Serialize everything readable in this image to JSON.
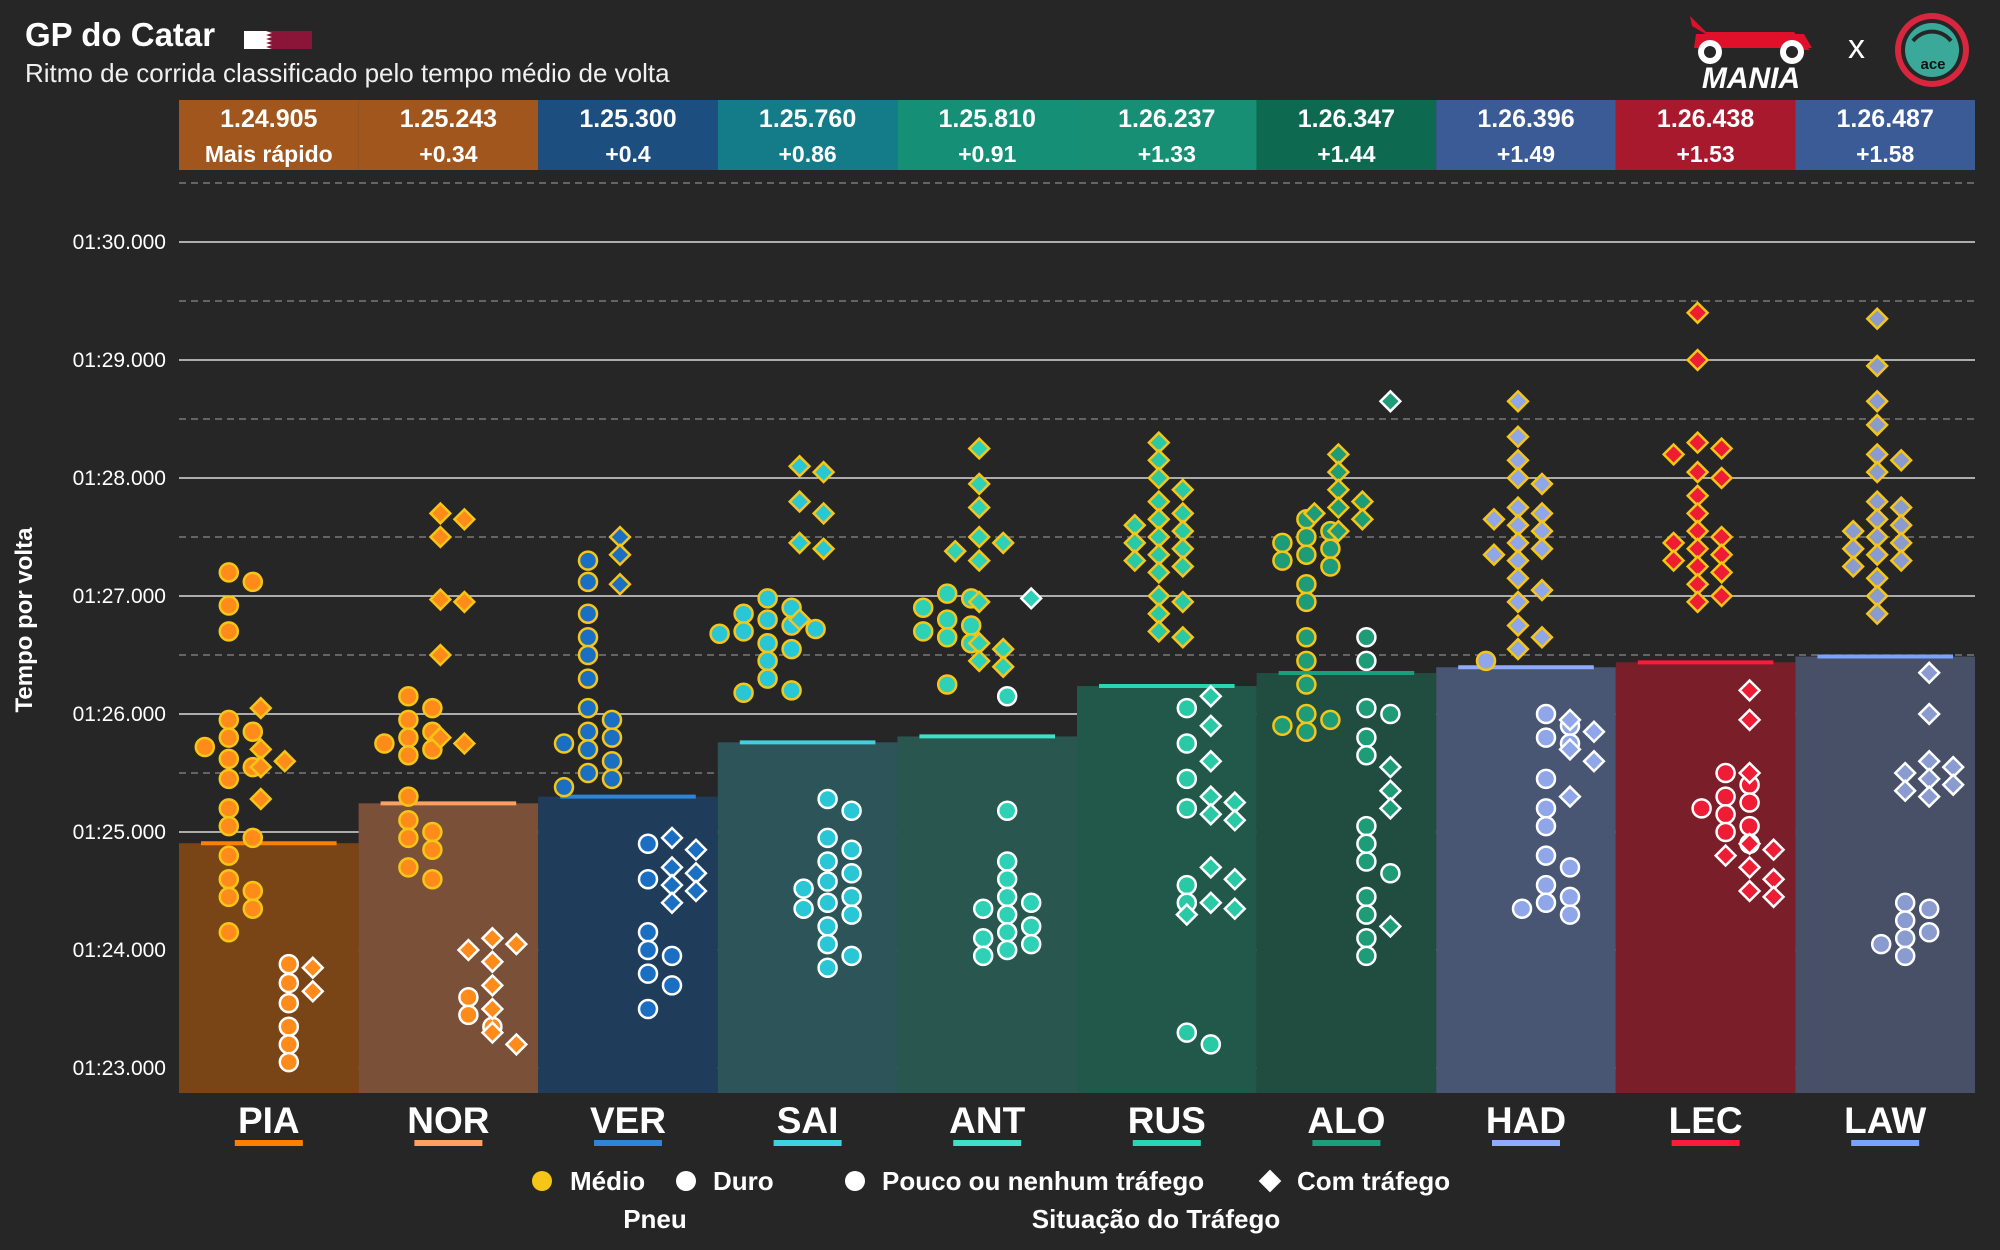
{
  "header": {
    "title": "GP do Catar",
    "subtitle": "Ritmo de corrida classificado pelo tempo médio de volta",
    "logo_text": "MANIA",
    "logo_separator": "x",
    "pace_logo_text": "ace"
  },
  "chart_data": {
    "type": "scatter",
    "title": "GP do Catar",
    "subtitle": "Ritmo de corrida classificado pelo tempo médio de volta",
    "ylabel": "Tempo por volta",
    "ylim": [
      82.8,
      90.5
    ],
    "yticks": [
      {
        "value": 83,
        "label": "01:23.000"
      },
      {
        "value": 84,
        "label": "01:24.000"
      },
      {
        "value": 85,
        "label": "01:25.000"
      },
      {
        "value": 86,
        "label": "01:26.000"
      },
      {
        "value": 87,
        "label": "01:27.000"
      },
      {
        "value": 88,
        "label": "01:28.000"
      },
      {
        "value": 89,
        "label": "01:29.000"
      },
      {
        "value": 90,
        "label": "01:30.000"
      }
    ],
    "legend": {
      "tyre_title": "Pneu",
      "traffic_title": "Situação do Tráfego",
      "medium": "Médio",
      "hard": "Duro",
      "clean": "Pouco ou nenhum tráfego",
      "traffic": "Com tráfego",
      "medium_color": "#f5c518",
      "hard_color": "#ffffff"
    },
    "drivers": [
      {
        "code": "PIA",
        "avg": 84.905,
        "avg_label": "1.24.905",
        "gap_label": "Mais rápido",
        "header_color": "#a0561c",
        "bar_color": "#7a4516",
        "line_color": "#ff8000",
        "fill": "#ff8c1a",
        "medium": {
          "clean": [
            87.2,
            87.12,
            86.92,
            86.7,
            85.95,
            85.85,
            85.8,
            85.72,
            85.62,
            85.55,
            85.45,
            85.2,
            85.05,
            84.95,
            84.8,
            84.6,
            84.5,
            84.45,
            84.35,
            84.15
          ],
          "traffic": [
            86.05,
            85.7,
            85.6,
            85.55,
            85.28
          ]
        },
        "hard": {
          "clean": [
            83.88,
            83.72,
            83.55,
            83.35,
            83.2,
            83.05
          ],
          "traffic": [
            83.85,
            83.65
          ]
        }
      },
      {
        "code": "NOR",
        "avg": 85.243,
        "avg_label": "1.25.243",
        "gap_label": "+0.34",
        "header_color": "#a0561c",
        "bar_color": "#7a5038",
        "line_color": "#ffa060",
        "fill": "#ff8c1a",
        "medium": {
          "clean": [
            86.15,
            86.05,
            85.95,
            85.85,
            85.8,
            85.75,
            85.7,
            85.65,
            85.3,
            85.1,
            85.0,
            84.95,
            84.85,
            84.7,
            84.6
          ],
          "traffic": [
            87.7,
            87.65,
            87.5,
            86.97,
            86.95,
            86.5,
            85.8,
            85.75
          ]
        },
        "hard": {
          "clean": [
            83.6,
            83.45,
            83.35
          ],
          "traffic": [
            84.1,
            84.05,
            84.0,
            83.9,
            83.7,
            83.5,
            83.3,
            83.2
          ]
        }
      },
      {
        "code": "VER",
        "avg": 85.3,
        "avg_label": "1.25.300",
        "gap_label": "+0.4",
        "header_color": "#1d4e80",
        "bar_color": "#1f3d5a",
        "line_color": "#2f84d8",
        "fill": "#1a6fc2",
        "medium": {
          "clean": [
            87.3,
            87.12,
            86.85,
            86.65,
            86.5,
            86.3,
            86.05,
            85.95,
            85.85,
            85.8,
            85.75,
            85.7,
            85.6,
            85.5,
            85.45,
            85.38
          ],
          "traffic": [
            87.5,
            87.35,
            87.1
          ]
        },
        "hard": {
          "clean": [
            84.15,
            84.0,
            83.95,
            83.8,
            83.7,
            83.5,
            84.9,
            84.6
          ],
          "traffic": [
            84.95,
            84.85,
            84.7,
            84.65,
            84.55,
            84.4,
            84.5
          ]
        }
      },
      {
        "code": "SAI",
        "avg": 85.76,
        "avg_label": "1.25.760",
        "gap_label": "+0.86",
        "header_color": "#137c88",
        "bar_color": "#2d5559",
        "line_color": "#3fd0e2",
        "fill": "#29c6d6",
        "medium": {
          "clean": [
            86.98,
            86.9,
            86.85,
            86.8,
            86.75,
            86.72,
            86.7,
            86.68,
            86.6,
            86.55,
            86.45,
            86.3,
            86.2,
            86.18
          ],
          "traffic": [
            88.1,
            88.05,
            87.8,
            87.7,
            87.45,
            87.4,
            86.8
          ]
        },
        "hard": {
          "clean": [
            85.28,
            85.18,
            84.95,
            84.85,
            84.75,
            84.65,
            84.58,
            84.52,
            84.45,
            84.4,
            84.35,
            84.3,
            84.2,
            84.05,
            83.95,
            83.85
          ],
          "traffic": []
        }
      },
      {
        "code": "ANT",
        "avg": 85.81,
        "avg_label": "1.25.810",
        "gap_label": "+0.91",
        "header_color": "#158f76",
        "bar_color": "#29574f",
        "line_color": "#40e0c8",
        "fill": "#2fd1b6",
        "medium": {
          "clean": [
            87.02,
            86.98,
            86.9,
            86.8,
            86.75,
            86.7,
            86.65,
            86.6,
            86.25
          ],
          "traffic": [
            88.25,
            87.95,
            87.75,
            87.5,
            87.45,
            87.38,
            87.3,
            86.95,
            86.6,
            86.55,
            86.45,
            86.4
          ]
        },
        "hard": {
          "clean": [
            86.15,
            85.18,
            84.75,
            84.6,
            84.45,
            84.4,
            84.35,
            84.3,
            84.2,
            84.15,
            84.1,
            84.05,
            84.0,
            83.95
          ],
          "traffic": [
            86.98
          ]
        }
      },
      {
        "code": "RUS",
        "avg": 86.237,
        "avg_label": "1.26.237",
        "gap_label": "+1.33",
        "header_color": "#178f74",
        "bar_color": "#21584a",
        "line_color": "#29d5b2",
        "fill": "#29c9a6",
        "medium": {
          "clean": [],
          "traffic": [
            88.3,
            88.15,
            88.0,
            87.9,
            87.8,
            87.7,
            87.65,
            87.6,
            87.55,
            87.5,
            87.45,
            87.4,
            87.35,
            87.3,
            87.25,
            87.2,
            87.0,
            86.95,
            86.85,
            86.7,
            86.65
          ]
        },
        "hard": {
          "clean": [
            86.05,
            85.75,
            85.45,
            85.2,
            84.55,
            84.4,
            83.3,
            83.2
          ],
          "traffic": [
            86.15,
            85.9,
            85.6,
            85.3,
            85.25,
            85.15,
            85.1,
            84.7,
            84.6,
            84.4,
            84.35,
            84.3
          ]
        }
      },
      {
        "code": "ALO",
        "avg": 86.347,
        "avg_label": "1.26.347",
        "gap_label": "+1.44",
        "header_color": "#0d6a50",
        "bar_color": "#214d41",
        "line_color": "#1a9e7b",
        "fill": "#1e9c78",
        "medium": {
          "clean": [
            87.65,
            87.55,
            87.5,
            87.45,
            87.4,
            87.35,
            87.3,
            87.25,
            87.1,
            86.95,
            86.65,
            86.45,
            86.25,
            86.0,
            85.95,
            85.9,
            85.85
          ],
          "traffic": [
            88.2,
            88.05,
            87.9,
            87.8,
            87.75,
            87.7,
            87.65,
            87.55
          ]
        },
        "hard": {
          "clean": [
            86.65,
            86.45,
            86.05,
            86.0,
            85.8,
            85.65,
            85.05,
            84.75,
            84.45,
            84.3,
            84.1,
            83.95,
            84.65,
            84.9
          ],
          "traffic": [
            88.65,
            85.55,
            85.35,
            85.2,
            84.2
          ]
        }
      },
      {
        "code": "HAD",
        "avg": 86.396,
        "avg_label": "1.26.396",
        "gap_label": "+1.49",
        "header_color": "#3b5b97",
        "bar_color": "#485674",
        "line_color": "#8faaff",
        "fill": "#8fa6e8",
        "medium": {
          "clean": [
            86.45
          ],
          "traffic": [
            88.65,
            88.35,
            88.15,
            88.0,
            87.95,
            87.75,
            87.7,
            87.65,
            87.6,
            87.55,
            87.45,
            87.4,
            87.35,
            87.3,
            87.15,
            87.05,
            86.95,
            86.75,
            86.65,
            86.55
          ]
        },
        "hard": {
          "clean": [
            86.0,
            85.9,
            85.8,
            85.75,
            85.45,
            85.2,
            85.05,
            84.8,
            84.7,
            84.55,
            84.45,
            84.4,
            84.35,
            84.3
          ],
          "traffic": [
            85.95,
            85.85,
            85.7,
            85.6,
            85.3
          ]
        }
      },
      {
        "code": "LEC",
        "avg": 86.438,
        "avg_label": "1.26.438",
        "gap_label": "+1.53",
        "header_color": "#a8192d",
        "bar_color": "#7a1f2a",
        "line_color": "#ff1a3a",
        "fill": "#ef1c36",
        "medium": {
          "clean": [],
          "traffic": [
            89.4,
            89.0,
            88.3,
            88.25,
            88.2,
            88.05,
            88.0,
            87.85,
            87.7,
            87.55,
            87.5,
            87.45,
            87.4,
            87.35,
            87.3,
            87.25,
            87.2,
            87.1,
            87.0,
            86.95
          ]
        },
        "hard": {
          "clean": [
            85.5,
            85.4,
            85.3,
            85.25,
            85.2,
            85.15,
            85.05,
            85.0,
            84.9
          ],
          "traffic": [
            86.2,
            85.95,
            85.5,
            84.9,
            84.85,
            84.8,
            84.7,
            84.6,
            84.5,
            84.45
          ]
        }
      },
      {
        "code": "LAW",
        "avg": 86.487,
        "avg_label": "1.26.487",
        "gap_label": "+1.58",
        "header_color": "#3b5b97",
        "bar_color": "#475066",
        "line_color": "#7aa2ff",
        "fill": "#8a9bcf",
        "medium": {
          "clean": [],
          "traffic": [
            89.35,
            88.95,
            88.65,
            88.45,
            88.2,
            88.15,
            88.05,
            87.8,
            87.75,
            87.65,
            87.6,
            87.55,
            87.5,
            87.45,
            87.4,
            87.35,
            87.3,
            87.25,
            87.15,
            87.0,
            86.85
          ]
        },
        "hard": {
          "clean": [
            84.4,
            84.35,
            84.25,
            84.15,
            84.1,
            84.05,
            83.95
          ],
          "traffic": [
            86.35,
            86.0,
            85.6,
            85.55,
            85.5,
            85.45,
            85.4,
            85.35,
            85.3
          ]
        }
      }
    ]
  }
}
